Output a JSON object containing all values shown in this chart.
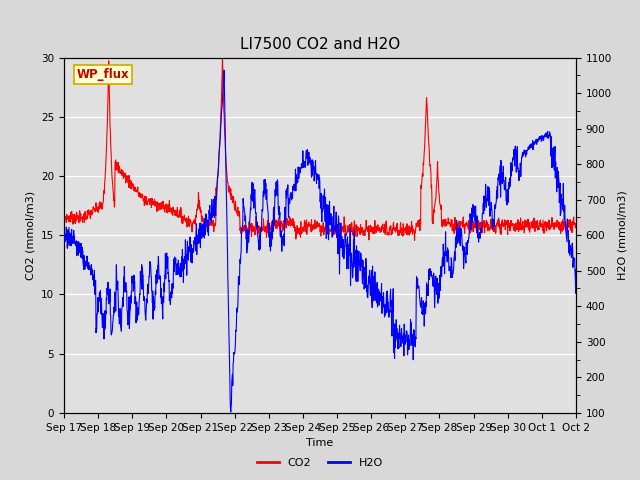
{
  "title": "LI7500 CO2 and H2O",
  "xlabel": "Time",
  "ylabel_left": "CO2 (mmol/m3)",
  "ylabel_right": "H2O (mmol/m3)",
  "ylim_left": [
    0,
    30
  ],
  "ylim_right": [
    100,
    1100
  ],
  "yticks_left": [
    0,
    5,
    10,
    15,
    20,
    25,
    30
  ],
  "yticks_right": [
    100,
    200,
    300,
    400,
    500,
    600,
    700,
    800,
    900,
    1000,
    1100
  ],
  "xtick_labels": [
    "Sep 17",
    "Sep 18",
    "Sep 19",
    "Sep 20",
    "Sep 21",
    "Sep 22",
    "Sep 23",
    "Sep 24",
    "Sep 25",
    "Sep 26",
    "Sep 27",
    "Sep 28",
    "Sep 29",
    "Sep 30",
    "Oct 1",
    "Oct 2"
  ],
  "fig_bg_color": "#d8d8d8",
  "plot_bg_color": "#e0e0e0",
  "co2_color": "#ff0000",
  "h2o_color": "#0000ff",
  "annotation_text": "WP_flux",
  "annotation_color": "#cc0000",
  "annotation_bg": "#ffffcc",
  "annotation_border": "#ccaa00",
  "line_width": 0.8,
  "title_fontsize": 11,
  "label_fontsize": 8,
  "tick_fontsize": 7.5,
  "legend_fontsize": 8
}
